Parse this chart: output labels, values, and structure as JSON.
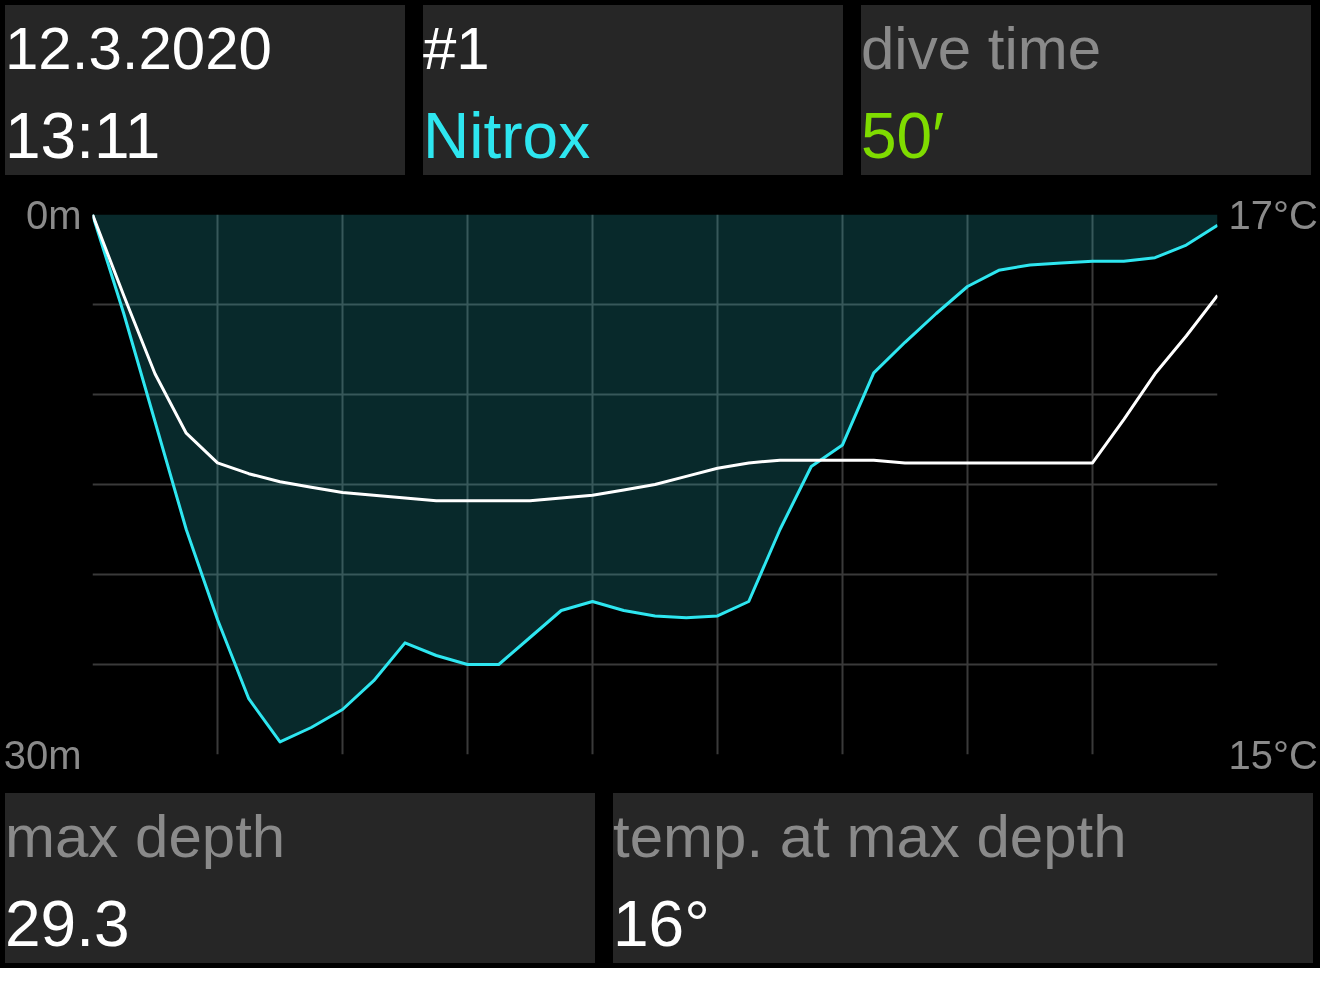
{
  "chart_data": [
    {
      "type": "other",
      "title": "12.3.2020",
      "subtitle": "13:11"
    },
    {
      "type": "other",
      "title": "#1",
      "subtitle": "Nitrox"
    },
    {
      "type": "other",
      "title": "dive time",
      "subtitle": "50′"
    },
    {
      "type": "area",
      "categories": [
        null,
        null,
        null,
        null,
        null,
        null,
        null,
        null,
        null,
        null,
        null,
        null,
        null,
        null,
        null,
        null,
        null,
        null,
        null,
        null,
        null,
        null,
        null,
        null,
        null,
        null,
        null,
        null,
        null,
        null,
        null,
        null,
        null,
        null,
        null,
        null,
        null
      ],
      "series": [
        {
          "type": "area",
          "color": "#2ee6f0",
          "values": [
            0,
            5.5,
            11.5,
            17.5,
            22.5,
            26.9,
            29.3,
            28.5,
            27.5,
            25.9,
            23.8,
            24.5,
            25.0,
            25.0,
            23.5,
            22.0,
            21.5,
            22.0,
            22.3,
            22.4,
            22.3,
            21.5,
            17.5,
            14.0,
            12.8,
            8.8,
            7.1,
            5.5,
            4.0,
            3.1,
            2.8,
            2.7,
            2.6,
            2.6,
            2.4,
            1.7,
            0.6
          ]
        },
        {
          "type": "line",
          "color": "#ffffff",
          "axis": "y2",
          "values": [
            17.0,
            16.7,
            16.41,
            16.19,
            16.08,
            16.04,
            16.01,
            15.99,
            15.97,
            15.96,
            15.95,
            15.94,
            15.94,
            15.94,
            15.94,
            15.95,
            15.96,
            15.98,
            16.0,
            16.03,
            16.06,
            16.08,
            16.09,
            16.09,
            16.09,
            16.09,
            16.08,
            16.08,
            16.08,
            16.08,
            16.08,
            16.08,
            16.08,
            16.24,
            16.41,
            16.55,
            16.7
          ]
        }
      ],
      "ylim": [
        30,
        0
      ],
      "yticks": [
        {
          "value": 0,
          "label": "0m"
        },
        {
          "value": 5,
          "label": null
        },
        {
          "value": 10,
          "label": null
        },
        {
          "value": 15,
          "label": null
        },
        {
          "value": 20,
          "label": null
        },
        {
          "value": 25,
          "label": null
        },
        {
          "value": 30,
          "label": "30m"
        }
      ],
      "y2lim": [
        15,
        17
      ],
      "y2ticks": [
        {
          "value": 15,
          "label": "15°C"
        },
        {
          "value": 17,
          "label": "17°C"
        }
      ],
      "grid": true
    },
    {
      "type": "other",
      "title": "max depth",
      "subtitle": "29.3"
    },
    {
      "type": "other",
      "title": "temp. at max depth",
      "subtitle": "16°"
    }
  ]
}
